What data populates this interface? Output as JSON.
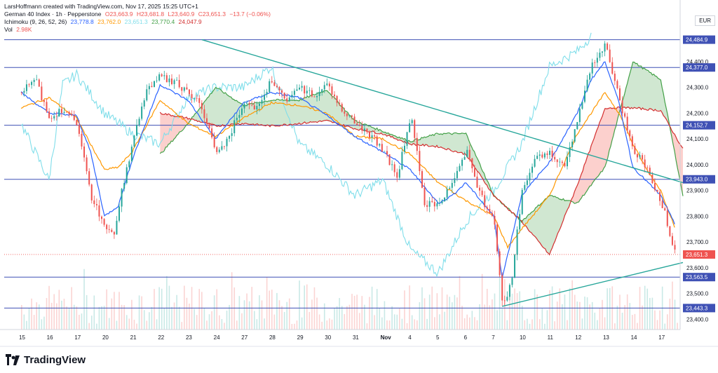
{
  "header": {
    "credit": "LarsHoffmann created with TradingView.com, Nov 17, 2025 15:25 UTC+1",
    "symbol": "German 40 Index · 1h · Pepperstone",
    "ohlc": {
      "o": "O23,663.9",
      "h": "H23,681.8",
      "l": "L23,640.9",
      "c": "C23,651.3",
      "chg": "−13.7 (−0.06%)"
    },
    "ichimoku": {
      "label": "Ichimoku (9, 26, 52, 26)",
      "v1": "23,778.8",
      "v2": "23,762.0",
      "v3": "23,651.3",
      "v4": "23,770.4",
      "v5": "24,047.9"
    },
    "vol": {
      "label": "Vol",
      "value": "2.98K"
    }
  },
  "currency": "EUR",
  "brand": "TradingView",
  "colors": {
    "up": "#26a69a",
    "down": "#ef5350",
    "tenkan": "#2962ff",
    "kijun": "#ff9800",
    "chikou": "#80deea",
    "spanA": "#43a047",
    "spanB": "#d32f2f",
    "cloud_up": "rgba(67,160,71,0.25)",
    "cloud_down": "rgba(244,67,54,0.25)",
    "hline": "#3f51b5",
    "trend": "#26a69a"
  },
  "chart_data": {
    "type": "line",
    "y_axis": {
      "range": [
        23360,
        24530
      ],
      "ticks": [
        23400,
        23500,
        23600,
        23700,
        23800,
        23900,
        24000,
        24100,
        24200,
        24300,
        24400
      ],
      "tick_labels": [
        "23,400.0",
        "23,500.0",
        "23,600.0",
        "23,700.0",
        "23,800.0",
        "23,900.0",
        "24,000.0",
        "24,100.0",
        "24,200.0",
        "24,300.0",
        "24,400.0"
      ]
    },
    "x_axis": {
      "labels": [
        "15",
        "16",
        "17",
        "20",
        "21",
        "22",
        "23",
        "24",
        "27",
        "28",
        "29",
        "30",
        "31",
        "Nov",
        "4",
        "5",
        "6",
        "7",
        "10",
        "11",
        "12",
        "13",
        "14",
        "17"
      ],
      "bold": [
        "Nov"
      ]
    },
    "horizontal_levels": [
      {
        "value": 24484.9,
        "label": "24,484.9"
      },
      {
        "value": 24377.0,
        "label": "24,377.0"
      },
      {
        "value": 24152.7,
        "label": "24,152.7"
      },
      {
        "value": 23943.0,
        "label": "23,943.0"
      },
      {
        "value": 23563.5,
        "label": "23,563.5"
      },
      {
        "value": 23443.3,
        "label": "23,443.3"
      }
    ],
    "current_price": {
      "value": 23651.3,
      "label": "23,651.3"
    },
    "series": [
      {
        "kind": "close",
        "x": [
          0,
          0.5,
          1,
          1.5,
          2,
          2.5,
          3,
          3.3,
          3.6,
          4,
          4.5,
          5,
          5.5,
          6,
          6.5,
          7,
          7.5,
          8,
          8.5,
          9,
          9.5,
          10,
          10.5,
          11,
          11.5,
          12,
          12.5,
          13,
          13.5,
          14,
          14.5,
          15,
          15.5,
          16,
          16.5,
          17,
          17.3,
          17.6,
          18,
          18.5,
          19,
          19.5,
          20,
          20.5,
          21,
          21.5,
          22,
          22.5,
          23,
          23.5
        ],
        "values": [
          24280,
          24330,
          24180,
          24220,
          24150,
          23880,
          23760,
          23720,
          23900,
          24080,
          24300,
          24340,
          24320,
          24280,
          24220,
          24040,
          24120,
          24250,
          24220,
          24330,
          24240,
          24300,
          24270,
          24310,
          24220,
          24160,
          24120,
          24060,
          23950,
          24190,
          23850,
          23840,
          23940,
          24060,
          23880,
          23780,
          23460,
          23530,
          23900,
          24020,
          24050,
          23990,
          24180,
          24390,
          24460,
          24250,
          24060,
          23980,
          23860,
          23660
        ]
      },
      {
        "kind": "tenkan",
        "x": [
          0,
          1,
          2,
          2.5,
          3,
          3.5,
          4,
          5,
          6,
          7,
          8,
          9,
          10,
          11,
          12,
          13,
          14,
          15,
          15.5,
          16,
          17,
          17.3,
          18,
          19,
          20,
          20.5,
          21,
          21.5,
          22,
          23,
          23.5
        ],
        "values": [
          24280,
          24200,
          24190,
          24050,
          23800,
          23840,
          24020,
          24310,
          24250,
          24100,
          24240,
          24280,
          24260,
          24190,
          24110,
          24050,
          23980,
          23850,
          23880,
          23930,
          23800,
          23560,
          23880,
          24010,
          24200,
          24330,
          24400,
          24240,
          23990,
          23880,
          23770
        ]
      },
      {
        "kind": "kijun",
        "x": [
          0,
          1,
          2,
          3,
          3.5,
          4,
          5,
          6,
          7,
          8,
          9,
          10,
          11,
          12,
          13,
          14,
          15,
          16,
          17,
          17.5,
          18,
          19,
          20,
          21,
          21.5,
          22,
          22.5,
          23,
          23.5
        ],
        "values": [
          24220,
          24260,
          24180,
          23980,
          23990,
          24050,
          24250,
          24160,
          24110,
          24180,
          24240,
          24230,
          24200,
          24110,
          24100,
          24040,
          23930,
          23860,
          23800,
          23680,
          23750,
          23880,
          24120,
          24280,
          24200,
          24080,
          23980,
          23900,
          23760
        ]
      },
      {
        "kind": "chikou",
        "x": [
          0,
          0.5,
          1,
          1.5,
          2,
          3,
          4,
          5,
          6,
          7,
          8,
          9,
          10,
          11,
          12,
          13,
          14,
          15,
          16,
          17,
          18,
          19,
          20,
          20.5
        ],
        "values": [
          24160,
          24050,
          23940,
          24310,
          24350,
          24200,
          24120,
          24080,
          24260,
          24300,
          24300,
          24380,
          24080,
          24000,
          23880,
          23940,
          23670,
          23580,
          23780,
          23900,
          24080,
          24380,
          24440,
          24500
        ]
      },
      {
        "kind": "span_a",
        "x": [
          5,
          6,
          7,
          8,
          9,
          10,
          11,
          12,
          13,
          14,
          15,
          16,
          17,
          18,
          19,
          20,
          21,
          22,
          23,
          23.8
        ],
        "values": [
          24040,
          24160,
          24300,
          24230,
          24250,
          24250,
          24290,
          24170,
          24130,
          24090,
          24120,
          24120,
          23880,
          23780,
          23880,
          23850,
          23990,
          24400,
          24330,
          23880
        ]
      },
      {
        "kind": "span_b",
        "x": [
          5,
          6,
          7,
          8,
          9,
          10,
          11,
          12,
          13,
          14,
          15,
          16,
          17,
          18,
          19,
          20,
          21,
          22,
          23,
          23.8
        ],
        "values": [
          24200,
          24180,
          24150,
          24160,
          24150,
          24160,
          24170,
          24140,
          24120,
          24080,
          24070,
          24040,
          23880,
          23780,
          23650,
          23920,
          24220,
          24220,
          24210,
          24060
        ]
      }
    ],
    "trendlines": [
      {
        "from": {
          "x": 6.5,
          "y": 24484.9
        },
        "to": {
          "x": 23.8,
          "y": 23930
        }
      },
      {
        "from": {
          "x": 17.3,
          "y": 23450
        },
        "to": {
          "x": 23.8,
          "y": 23620
        }
      }
    ],
    "grid": false,
    "volume": true
  }
}
